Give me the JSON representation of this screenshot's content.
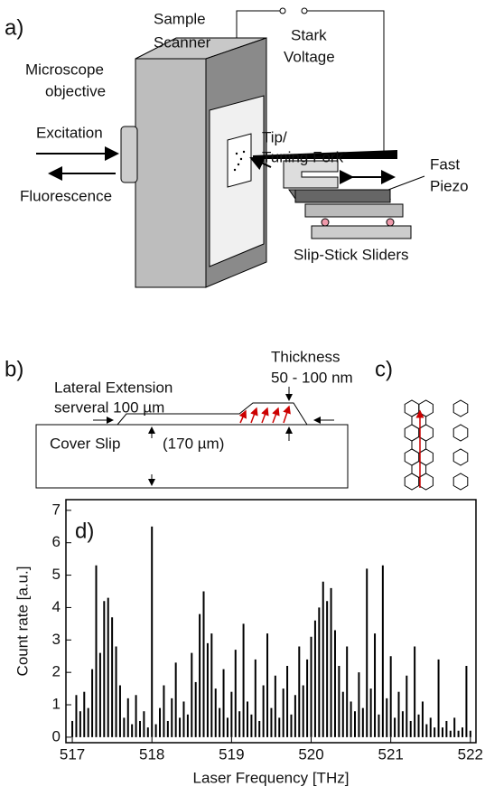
{
  "diagram": {
    "a": {
      "label": "a)",
      "sample": "Sample",
      "scanner": "Scanner",
      "stark": "Stark",
      "voltage": "Voltage",
      "microscope": "Microscope",
      "objective": "objective",
      "excitation": "Excitation",
      "fluorescence": "Fluorescence",
      "tip": "Tip/",
      "tuning_fork": "Tuning Fork",
      "fast": "Fast",
      "piezo": "Piezo",
      "sliders": "Slip-Stick Sliders"
    },
    "b": {
      "label": "b)",
      "lateral": "Lateral Extension",
      "several": "serveral 100 µm",
      "thickness": "Thickness",
      "thickness_range": "50 - 100 nm",
      "cover_slip": "Cover Slip",
      "cover_thickness": "(170 µm)"
    },
    "c": {
      "label": "c)"
    }
  },
  "chart_data": {
    "type": "bar",
    "title": "d)",
    "x_label": "Laser Frequency [THz]",
    "y_label": "Count rate [a.u.]",
    "color": "#000000",
    "x": [
      517.0,
      517.05,
      517.1,
      517.15,
      517.2,
      517.25,
      517.3,
      517.35,
      517.4,
      517.45,
      517.5,
      517.55,
      517.6,
      517.65,
      517.7,
      517.75,
      517.8,
      517.85,
      517.9,
      517.95,
      518.0,
      518.05,
      518.1,
      518.15,
      518.2,
      518.25,
      518.3,
      518.35,
      518.4,
      518.45,
      518.5,
      518.55,
      518.6,
      518.65,
      518.7,
      518.75,
      518.8,
      518.85,
      518.9,
      518.95,
      519.0,
      519.05,
      519.1,
      519.15,
      519.2,
      519.25,
      519.3,
      519.35,
      519.4,
      519.45,
      519.5,
      519.55,
      519.6,
      519.65,
      519.7,
      519.75,
      519.8,
      519.85,
      519.9,
      519.95,
      520.0,
      520.05,
      520.1,
      520.15,
      520.2,
      520.25,
      520.3,
      520.35,
      520.4,
      520.45,
      520.5,
      520.55,
      520.6,
      520.65,
      520.7,
      520.75,
      520.8,
      520.85,
      520.9,
      520.95,
      521.0,
      521.05,
      521.1,
      521.15,
      521.2,
      521.25,
      521.3,
      521.35,
      521.4,
      521.45,
      521.5,
      521.55,
      521.6,
      521.65,
      521.7,
      521.75,
      521.8,
      521.85,
      521.9,
      521.95,
      522.0
    ],
    "values": [
      0.5,
      1.3,
      0.8,
      1.4,
      0.9,
      2.1,
      5.3,
      2.6,
      4.2,
      4.3,
      3.7,
      2.8,
      1.6,
      0.6,
      1.2,
      0.4,
      1.3,
      0.5,
      0.8,
      0.3,
      6.5,
      0.4,
      0.9,
      1.6,
      0.5,
      1.2,
      2.3,
      0.6,
      1.1,
      0.7,
      2.6,
      1.7,
      3.8,
      4.5,
      2.9,
      3.2,
      1.5,
      0.9,
      2.1,
      0.6,
      1.4,
      2.7,
      0.8,
      3.5,
      1.1,
      0.7,
      2.4,
      0.5,
      1.6,
      3.2,
      0.9,
      1.9,
      0.6,
      1.5,
      2.2,
      0.7,
      1.3,
      2.8,
      1.6,
      2.4,
      3.1,
      3.6,
      4.0,
      4.8,
      4.2,
      4.6,
      3.3,
      2.2,
      1.4,
      2.8,
      1.1,
      0.8,
      2.0,
      0.9,
      5.2,
      1.5,
      3.2,
      0.7,
      5.3,
      1.2,
      2.5,
      0.6,
      1.4,
      0.8,
      1.9,
      0.5,
      2.8,
      0.7,
      1.1,
      0.4,
      0.6,
      0.3,
      2.4,
      0.3,
      0.5,
      0.2,
      0.6,
      0.2,
      0.3,
      2.2,
      0.2
    ],
    "xlim": [
      516.92,
      522.07
    ],
    "xticks": [
      517,
      518,
      519,
      520,
      521,
      522
    ],
    "ylim": [
      -0.17,
      7.33
    ],
    "yticks": [
      0,
      1,
      2,
      3,
      4,
      5,
      6,
      7
    ]
  }
}
